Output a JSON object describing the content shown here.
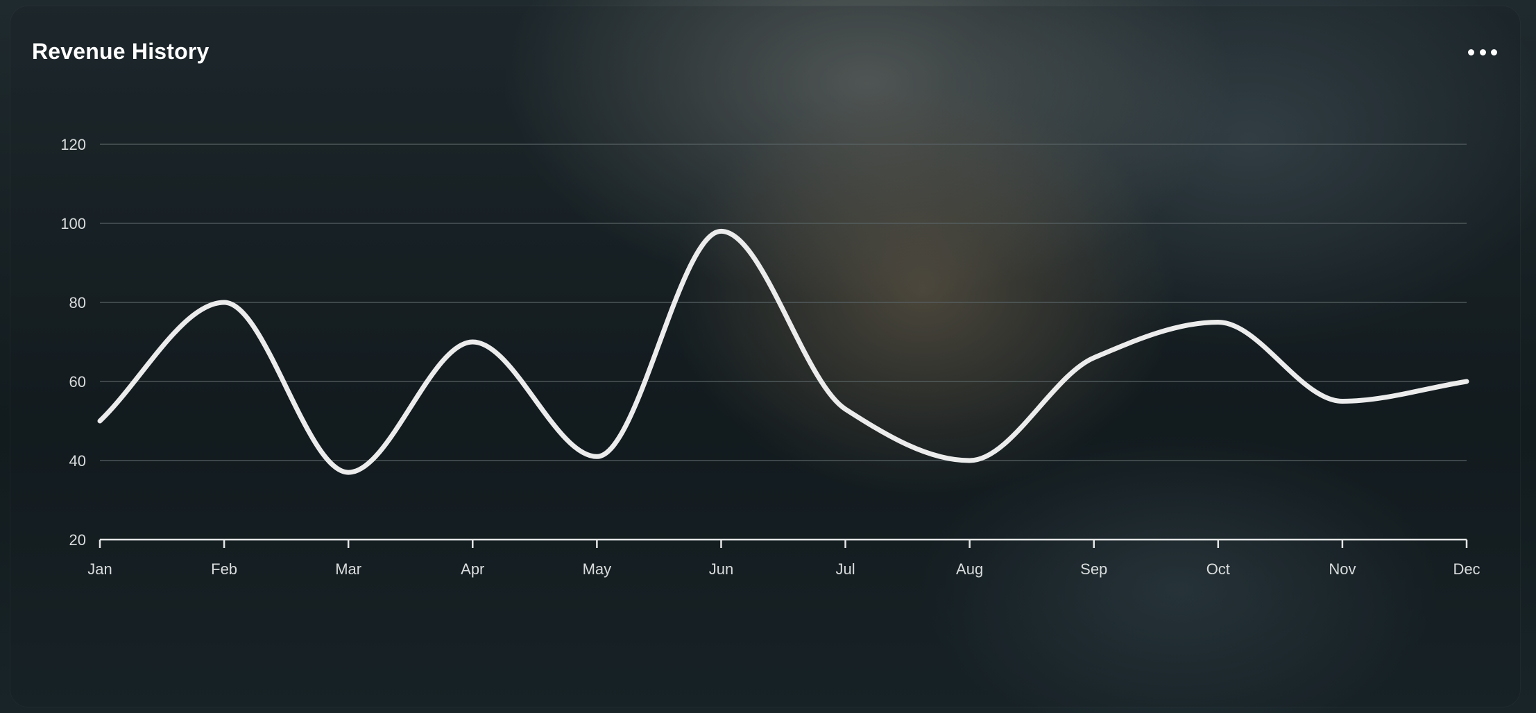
{
  "card": {
    "title": "Revenue History",
    "menu_icon": "more-horizontal-icon"
  },
  "colors": {
    "line": "#ececec",
    "grid": "#5a6466",
    "axis": "#e6e6e6",
    "text": "#d9dcdc",
    "title": "#ffffff"
  },
  "chart_data": {
    "type": "line",
    "title": "Revenue History",
    "xlabel": "",
    "ylabel": "",
    "categories": [
      "Jan",
      "Feb",
      "Mar",
      "Apr",
      "May",
      "Jun",
      "Jul",
      "Aug",
      "Sep",
      "Oct",
      "Nov",
      "Dec"
    ],
    "series": [
      {
        "values": [
          50,
          80,
          37,
          70,
          41,
          98,
          53,
          40,
          66,
          75,
          55,
          60
        ]
      }
    ],
    "ylim": [
      20,
      120
    ],
    "yticks": [
      20,
      40,
      60,
      80,
      100,
      120
    ],
    "grid": true,
    "smooth": true,
    "legend": "none"
  }
}
